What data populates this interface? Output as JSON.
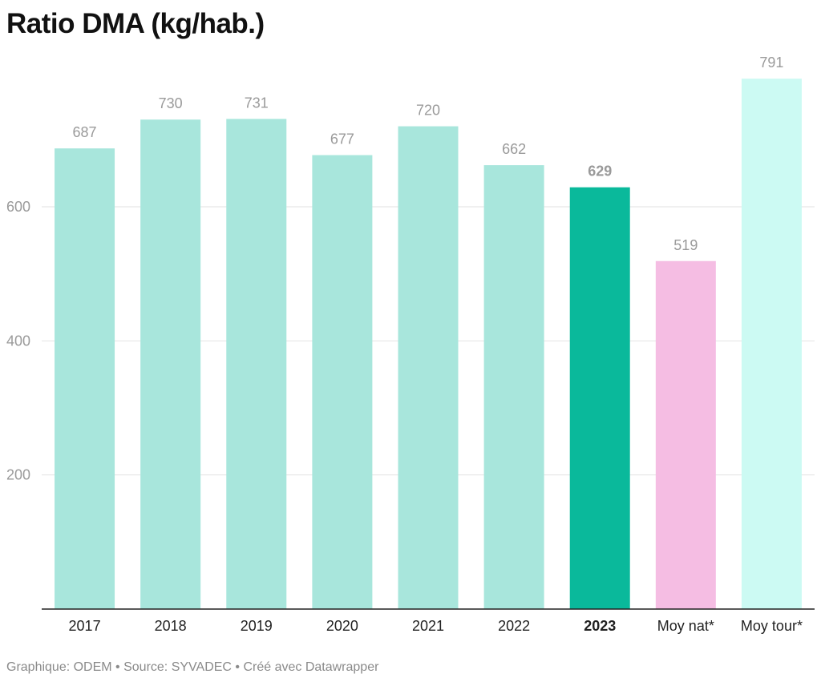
{
  "title": "Ratio DMA (kg/hab.)",
  "footer": "Graphique: ODEM • Source: SYVADEC • Créé avec Datawrapper",
  "colors": {
    "default_bar": "#a8e6dc",
    "highlight_bar": "#0ab99b",
    "national_bar": "#f5bde3",
    "tourist_bar": "#ccfaf3",
    "gridline": "#e2e2e2",
    "baseline": "#222222"
  },
  "chart_data": {
    "type": "bar",
    "title": "Ratio DMA (kg/hab.)",
    "xlabel": "",
    "ylabel": "",
    "ylim": [
      0,
      810
    ],
    "yticks": [
      200,
      400,
      600
    ],
    "grid": true,
    "categories": [
      "2017",
      "2018",
      "2019",
      "2020",
      "2021",
      "2022",
      "2023",
      "Moy nat*",
      "Moy tour*"
    ],
    "values": [
      687,
      730,
      731,
      677,
      720,
      662,
      629,
      519,
      791
    ],
    "highlight": "2023",
    "bar_colors": [
      "#a8e6dc",
      "#a8e6dc",
      "#a8e6dc",
      "#a8e6dc",
      "#a8e6dc",
      "#a8e6dc",
      "#0ab99b",
      "#f5bde3",
      "#ccfaf3"
    ]
  }
}
